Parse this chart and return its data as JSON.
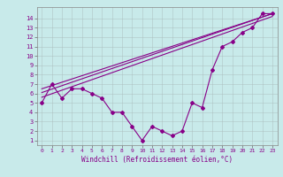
{
  "x_data": [
    0,
    1,
    2,
    3,
    4,
    5,
    6,
    7,
    8,
    9,
    10,
    11,
    12,
    13,
    14,
    15,
    16,
    17,
    18,
    19,
    20,
    21,
    22,
    23
  ],
  "y_main": [
    5,
    7,
    5.5,
    6.5,
    6.5,
    6,
    5.5,
    4,
    4,
    2.5,
    1,
    2.5,
    2,
    1.5,
    2,
    5,
    4.5,
    8.5,
    11,
    11.5,
    12.5,
    13,
    14.5,
    14.5
  ],
  "line1": {
    "x": [
      0,
      23
    ],
    "y": [
      6.5,
      14.5
    ]
  },
  "line2": {
    "x": [
      0,
      23
    ],
    "y": [
      6.1,
      14.5
    ]
  },
  "line3": {
    "x": [
      0,
      23
    ],
    "y": [
      5.6,
      14.2
    ]
  },
  "color": "#880088",
  "bg_color": "#c8eaea",
  "xlabel": "Windchill (Refroidissement éolien,°C)",
  "xlim": [
    -0.5,
    23.5
  ],
  "ylim": [
    0.5,
    15.2
  ],
  "xticks": [
    0,
    1,
    2,
    3,
    4,
    5,
    6,
    7,
    8,
    9,
    10,
    11,
    12,
    13,
    14,
    15,
    16,
    17,
    18,
    19,
    20,
    21,
    22,
    23
  ],
  "yticks": [
    1,
    2,
    3,
    4,
    5,
    6,
    7,
    8,
    9,
    10,
    11,
    12,
    13,
    14
  ]
}
